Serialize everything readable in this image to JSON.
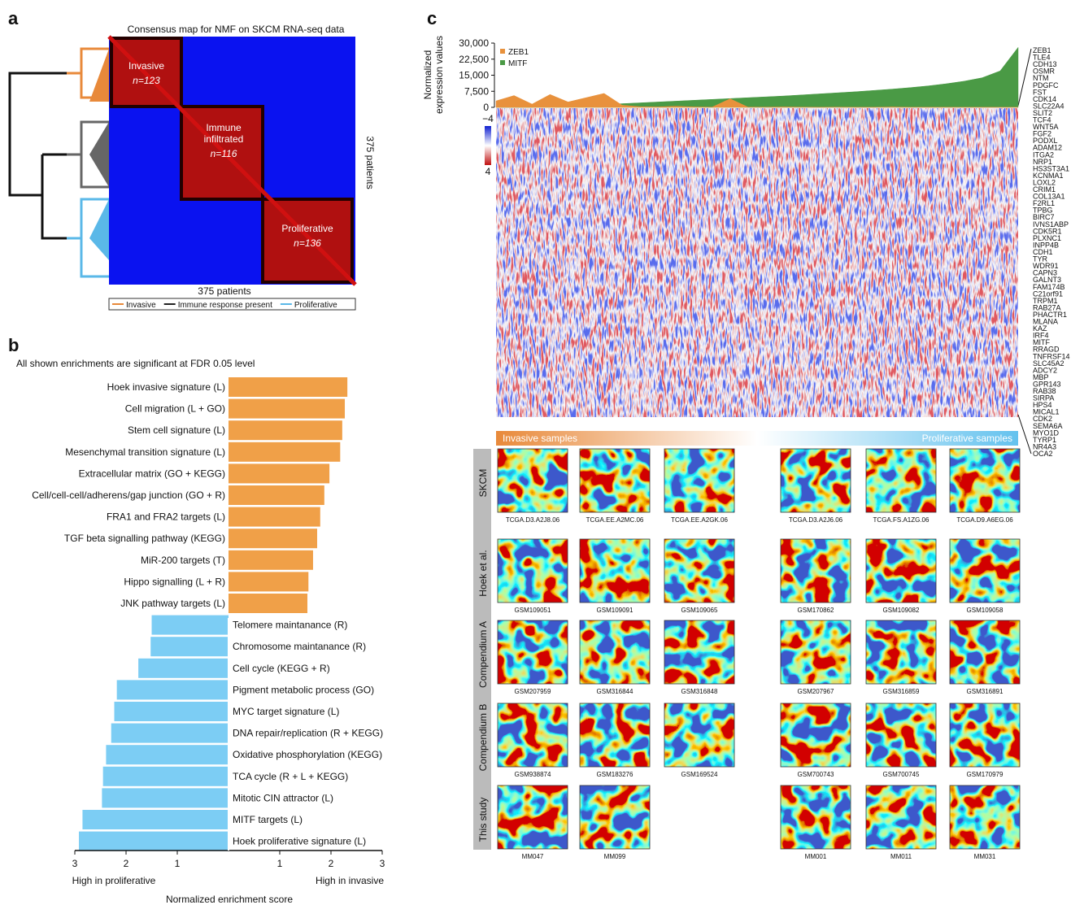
{
  "panel_labels": [
    "a",
    "b",
    "c"
  ],
  "panel_a": {
    "title": "Consensus map for NMF on SKCM RNA-seq data",
    "clusters": [
      {
        "label_lines": [
          "Invasive"
        ],
        "n": "n=123"
      },
      {
        "label_lines": [
          "Immune",
          "infiltrated"
        ],
        "n": "n=116"
      },
      {
        "label_lines": [
          "Proliferative"
        ],
        "n": "n=136"
      }
    ],
    "x_label": "375 patients",
    "y_label": "375 patients",
    "legend": [
      {
        "name": "Invasive",
        "color": "#e8893a"
      },
      {
        "name": "Immune response present",
        "color": "#222222"
      },
      {
        "name": "Proliferative",
        "color": "#5ab8e8"
      }
    ]
  },
  "chart_data": [
    {
      "type": "hbar",
      "subtitle": "All shown enrichments are significant at FDR 0.05 level",
      "categories": [
        "Hoek invasive signature (L)",
        "Cell migration (L + GO)",
        "Stem cell signature (L)",
        "Mesenchymal transition signature (L)",
        "Extracellular matrix (GO + KEGG)",
        "Cell/cell-cell/adherens/gap junction (GO + R)",
        "FRA1 and FRA2 targets (L)",
        "TGF beta signalling pathway (KEGG)",
        "MiR-200 targets (T)",
        "Hippo signalling (L + R)",
        "JNK pathway targets (L)",
        "Telomere maintanance (R)",
        "Chromosome maintanance (R)",
        "Cell cycle (KEGG + R)",
        "Pigment metabolic process (GO)",
        "MYC target signature (L)",
        "DNA repair/replication (R + KEGG)",
        "Oxidative phosphorylation (KEGG)",
        "TCA cycle (R + L + KEGG)",
        "Mitotic CIN attractor (L)",
        "MITF targets (L)",
        "Hoek proliferative signature (L)"
      ],
      "values": [
        2.32,
        2.27,
        2.22,
        2.18,
        1.97,
        1.87,
        1.79,
        1.73,
        1.65,
        1.56,
        1.54,
        -1.5,
        -1.52,
        -1.76,
        -2.18,
        -2.23,
        -2.29,
        -2.39,
        -2.45,
        -2.47,
        -2.85,
        -2.92
      ],
      "colors": {
        "positive": "#f0a048",
        "negative": "#7ccdf4"
      },
      "xlim": [
        -3,
        3
      ],
      "xticks": [
        {
          "value": -3,
          "label": "3"
        },
        {
          "value": -2,
          "label": "2"
        },
        {
          "value": -1,
          "label": "1"
        },
        1,
        2,
        3
      ],
      "xlabel_left": "High in proliferative",
      "xlabel_right": "High in invasive",
      "xlabel": "Normalized enrichment score"
    },
    {
      "type": "area",
      "ylabel_lines": [
        "Normalized",
        "expression values"
      ],
      "series": [
        {
          "name": "MITF",
          "color": "#4a9a45",
          "values": [
            0,
            0,
            0,
            200,
            500,
            900,
            1300,
            1700,
            2100,
            2500,
            2900,
            3300,
            3700,
            4100,
            4500,
            4900,
            5300,
            5800,
            6300,
            6800,
            7300,
            7900,
            8500,
            9200,
            10000,
            11000,
            12200,
            13800,
            17000,
            28000
          ]
        },
        {
          "name": "ZEB1",
          "color": "#e8913c",
          "values": [
            3000,
            5500,
            1500,
            6000,
            2500,
            4500,
            6500,
            1000,
            300,
            200,
            500,
            200,
            100,
            4000,
            100,
            100,
            200,
            100,
            0,
            100,
            0,
            0,
            200,
            0,
            0,
            0,
            0,
            0,
            0,
            0
          ]
        }
      ],
      "legend_order": [
        1,
        0
      ],
      "ylim": [
        0,
        30000
      ],
      "yticks": [
        0,
        {
          "value": 7500,
          "label": "7,500"
        },
        {
          "value": 15000,
          "label": "15,000"
        },
        {
          "value": 22500,
          "label": "22,500"
        },
        {
          "value": 30000,
          "label": "30,000"
        }
      ]
    }
  ],
  "panel_c": {
    "scale_labels": [
      "−4",
      "4"
    ],
    "genes": [
      "ZEB1",
      "TLE4",
      "CDH13",
      "OSMR",
      "NTM",
      "PDGFC",
      "FST",
      "CDK14",
      "SLC22A4",
      "SLIT2",
      "TCF4",
      "WNT5A",
      "FGF2",
      "PODXL",
      "ADAM12",
      "ITGA2",
      "NRP1",
      "HS3ST3A1",
      "KCNMA1",
      "LOXL2",
      "CRIM1",
      "COL13A1",
      "F2RL1",
      "TPBG",
      "BIRC7",
      "IVNS1ABP",
      "CDK5R1",
      "PLXNC1",
      "INPP4B",
      "CDH1",
      "TYR",
      "WDR91",
      "CAPN3",
      "GALNT3",
      "FAM174B",
      "C21orf91",
      "TRPM1",
      "RAB27A",
      "PHACTR1",
      "MLANA",
      "KAZ",
      "IRF4",
      "MITF",
      "RRAGD",
      "TNFRSF14",
      "SLC45A2",
      "ADCY2",
      "MBP",
      "GPR143",
      "RAB38",
      "SIRPA",
      "HPS4",
      "MICAL1",
      "CDK2",
      "SEMA6A",
      "MYO1D",
      "TYRP1",
      "NR4A3",
      "OCA2"
    ],
    "band_left": "Invasive samples",
    "band_right": "Proliferative samples",
    "rows": [
      {
        "name": "SKCM",
        "samples": [
          "TCGA.D3.A2J8.06",
          "TCGA.EE.A2MC.06",
          "TCGA.EE.A2GK.06",
          "TCGA.D3.A2J6.06",
          "TCGA.FS.A1ZG.06",
          "TCGA.D9.A6EG.06"
        ]
      },
      {
        "name": "Hoek et al.",
        "samples": [
          "GSM109051",
          "GSM109091",
          "GSM109065",
          "GSM170862",
          "GSM109082",
          "GSM109058"
        ]
      },
      {
        "name": "Compendium A",
        "samples": [
          "GSM207959",
          "GSM316844",
          "GSM316848",
          "GSM207967",
          "GSM316859",
          "GSM316891"
        ]
      },
      {
        "name": "Compendium B",
        "samples": [
          "GSM938874",
          "GSM183276",
          "GSM169524",
          "GSM700743",
          "GSM700745",
          "GSM170979"
        ]
      },
      {
        "name": "This study",
        "samples": [
          "MM047",
          "MM099",
          null,
          "MM001",
          "MM011",
          "MM031"
        ]
      }
    ]
  }
}
